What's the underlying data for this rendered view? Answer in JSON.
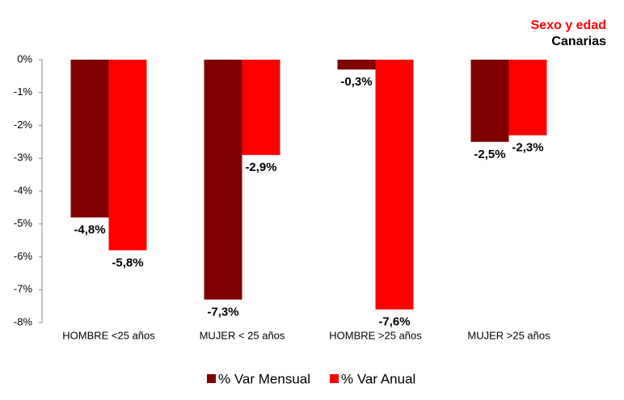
{
  "chart_data": {
    "type": "bar",
    "title": "Sexo y edad",
    "subtitle": "Canarias",
    "categories": [
      "HOMBRE <25 años",
      "MUJER < 25 años",
      "HOMBRE >25 años",
      "MUJER >25 años"
    ],
    "series": [
      {
        "name": "% Var Mensual",
        "color": "#800000",
        "values": [
          -4.8,
          -7.3,
          -0.3,
          -2.5
        ],
        "value_labels": [
          "-4,8%",
          "-7,3%",
          "-0,3%",
          "-2,5%"
        ]
      },
      {
        "name": "% Var Anual",
        "color": "#ff0000",
        "values": [
          -5.8,
          -2.9,
          -7.6,
          -2.3
        ],
        "value_labels": [
          "-5,8%",
          "-2,9%",
          "-7,6%",
          "-2,3%"
        ]
      }
    ],
    "ylim": [
      -8,
      0
    ],
    "yticks": [
      {
        "value": 0,
        "label": "0%"
      },
      {
        "value": -1,
        "label": "-1%"
      },
      {
        "value": -2,
        "label": "-2%"
      },
      {
        "value": -3,
        "label": "-3%"
      },
      {
        "value": -4,
        "label": "-4%"
      },
      {
        "value": -5,
        "label": "-5%"
      },
      {
        "value": -6,
        "label": "-6%"
      },
      {
        "value": -7,
        "label": "-7%"
      },
      {
        "value": -8,
        "label": "-8%"
      }
    ],
    "grid": false,
    "legend": "bottom"
  }
}
